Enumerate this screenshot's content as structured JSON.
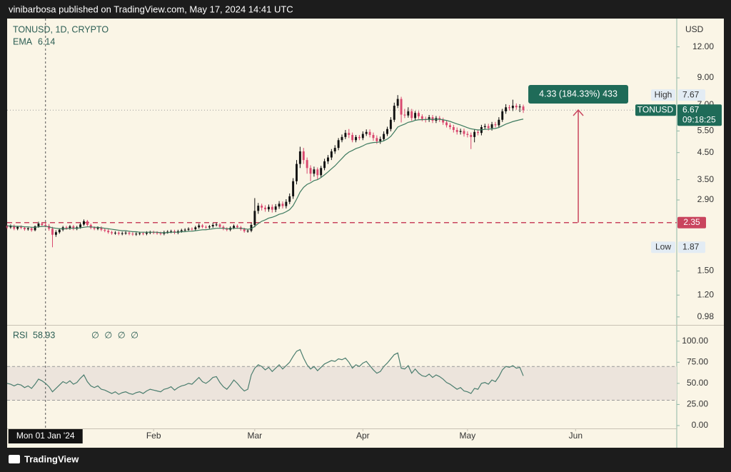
{
  "header": {
    "publisher": "vinibarbosa published on TradingView.com, May 17, 2024 14:41 UTC"
  },
  "footer": {
    "brand": "TradingView"
  },
  "chart_data": [
    {
      "type": "candlestick",
      "title": "TONUSD, 1D, CRYPTO",
      "ema_name": "EMA",
      "axis_unit": "USD",
      "symbol": "TONUSD",
      "countdown": "09:18:25",
      "high_label": "High",
      "low_label": "Low",
      "log_scale": true,
      "up_color": "#111111",
      "down_color": "#d9486f",
      "ema_color": "#3d7a5f",
      "line_color": "#c9455e",
      "xlim": [
        "2023-12-21",
        "2024-06-30"
      ],
      "xticks": [
        {
          "value": "2024-02-01",
          "label": "Feb"
        },
        {
          "value": "2024-03-01",
          "label": "Mar"
        },
        {
          "value": "2024-04-01",
          "label": "Apr"
        },
        {
          "value": "2024-05-01",
          "label": "May"
        },
        {
          "value": "2024-06-01",
          "label": "Jun"
        }
      ],
      "crosshair": {
        "x": "2024-01-01",
        "label": "Mon 01 Jan '24"
      },
      "ylim": [
        0.91,
        15.6
      ],
      "yticks": [
        {
          "value": 0.98,
          "label": "0.98"
        },
        {
          "value": 1.2,
          "label": "1.20"
        },
        {
          "value": 1.5,
          "label": "1.50"
        },
        {
          "value": 2.9,
          "label": "2.90"
        },
        {
          "value": 3.5,
          "label": "3.50"
        },
        {
          "value": 4.5,
          "label": "4.50"
        },
        {
          "value": 5.5,
          "label": "5.50"
        },
        {
          "value": 7,
          "label": "7.00"
        },
        {
          "value": 9,
          "label": "9.00"
        },
        {
          "value": 12,
          "label": "12.00"
        }
      ],
      "horizontal_line": 2.35,
      "measure": {
        "label": "4.33 (184.33%) 433",
        "from": 2.35,
        "to": 6.68
      },
      "x": [
        "2023-12-21",
        "2023-12-22",
        "2023-12-23",
        "2023-12-24",
        "2023-12-25",
        "2023-12-26",
        "2023-12-27",
        "2023-12-28",
        "2023-12-29",
        "2023-12-30",
        "2023-12-31",
        "2024-01-01",
        "2024-01-02",
        "2024-01-03",
        "2024-01-04",
        "2024-01-05",
        "2024-01-06",
        "2024-01-07",
        "2024-01-08",
        "2024-01-09",
        "2024-01-10",
        "2024-01-11",
        "2024-01-12",
        "2024-01-13",
        "2024-01-14",
        "2024-01-15",
        "2024-01-16",
        "2024-01-17",
        "2024-01-18",
        "2024-01-19",
        "2024-01-20",
        "2024-01-21",
        "2024-01-22",
        "2024-01-23",
        "2024-01-24",
        "2024-01-25",
        "2024-01-26",
        "2024-01-27",
        "2024-01-28",
        "2024-01-29",
        "2024-01-30",
        "2024-01-31",
        "2024-02-01",
        "2024-02-02",
        "2024-02-03",
        "2024-02-04",
        "2024-02-05",
        "2024-02-06",
        "2024-02-07",
        "2024-02-08",
        "2024-02-09",
        "2024-02-10",
        "2024-02-11",
        "2024-02-12",
        "2024-02-13",
        "2024-02-14",
        "2024-02-15",
        "2024-02-16",
        "2024-02-17",
        "2024-02-18",
        "2024-02-19",
        "2024-02-20",
        "2024-02-21",
        "2024-02-22",
        "2024-02-23",
        "2024-02-24",
        "2024-02-25",
        "2024-02-26",
        "2024-02-27",
        "2024-02-28",
        "2024-02-29",
        "2024-03-01",
        "2024-03-02",
        "2024-03-03",
        "2024-03-04",
        "2024-03-05",
        "2024-03-06",
        "2024-03-07",
        "2024-03-08",
        "2024-03-09",
        "2024-03-10",
        "2024-03-11",
        "2024-03-12",
        "2024-03-13",
        "2024-03-14",
        "2024-03-15",
        "2024-03-16",
        "2024-03-17",
        "2024-03-18",
        "2024-03-19",
        "2024-03-20",
        "2024-03-21",
        "2024-03-22",
        "2024-03-23",
        "2024-03-24",
        "2024-03-25",
        "2024-03-26",
        "2024-03-27",
        "2024-03-28",
        "2024-03-29",
        "2024-03-30",
        "2024-03-31",
        "2024-04-01",
        "2024-04-02",
        "2024-04-03",
        "2024-04-04",
        "2024-04-05",
        "2024-04-06",
        "2024-04-07",
        "2024-04-08",
        "2024-04-09",
        "2024-04-10",
        "2024-04-11",
        "2024-04-12",
        "2024-04-13",
        "2024-04-14",
        "2024-04-15",
        "2024-04-16",
        "2024-04-17",
        "2024-04-18",
        "2024-04-19",
        "2024-04-20",
        "2024-04-21",
        "2024-04-22",
        "2024-04-23",
        "2024-04-24",
        "2024-04-25",
        "2024-04-26",
        "2024-04-27",
        "2024-04-28",
        "2024-04-29",
        "2024-04-30",
        "2024-05-01",
        "2024-05-02",
        "2024-05-03",
        "2024-05-04",
        "2024-05-05",
        "2024-05-06",
        "2024-05-07",
        "2024-05-08",
        "2024-05-09",
        "2024-05-10",
        "2024-05-11",
        "2024-05-12",
        "2024-05-13",
        "2024-05-14",
        "2024-05-15",
        "2024-05-16",
        "2024-05-17"
      ],
      "open": [
        2.27,
        2.25,
        2.28,
        2.22,
        2.26,
        2.24,
        2.21,
        2.23,
        2.19,
        2.27,
        2.33,
        2.3,
        2.28,
        2.22,
        2.1,
        2.15,
        2.2,
        2.25,
        2.23,
        2.27,
        2.22,
        2.25,
        2.31,
        2.38,
        2.3,
        2.24,
        2.22,
        2.24,
        2.2,
        2.18,
        2.15,
        2.13,
        2.14,
        2.12,
        2.13,
        2.14,
        2.12,
        2.11,
        2.12,
        2.13,
        2.12,
        2.14,
        2.15,
        2.14,
        2.13,
        2.12,
        2.15,
        2.16,
        2.17,
        2.14,
        2.17,
        2.19,
        2.2,
        2.22,
        2.21,
        2.25,
        2.29,
        2.26,
        2.25,
        2.27,
        2.3,
        2.31,
        2.26,
        2.22,
        2.2,
        2.24,
        2.28,
        2.25,
        2.21,
        2.17,
        2.18,
        2.3,
        2.62,
        2.75,
        2.7,
        2.66,
        2.72,
        2.65,
        2.73,
        2.8,
        2.74,
        2.85,
        3.0,
        3.45,
        4.05,
        4.55,
        4.2,
        3.9,
        3.7,
        3.85,
        3.65,
        3.9,
        4.15,
        4.3,
        4.55,
        4.7,
        5.05,
        5.2,
        5.4,
        5.3,
        5.05,
        5.2,
        5.15,
        5.35,
        5.45,
        5.3,
        5.15,
        5.0,
        5.1,
        5.35,
        5.6,
        6.1,
        6.95,
        7.4,
        6.4,
        6.35,
        6.6,
        6.2,
        6.5,
        6.3,
        6.15,
        6.1,
        6.25,
        6.05,
        6.2,
        6.1,
        5.95,
        5.8,
        5.7,
        5.55,
        5.45,
        5.5,
        5.35,
        5.3,
        5.2,
        5.45,
        5.4,
        5.7,
        5.75,
        5.65,
        5.85,
        5.8,
        6.1,
        6.6,
        6.85,
        6.8,
        6.95,
        6.85,
        6.9
      ],
      "high": [
        2.3,
        2.31,
        2.31,
        2.28,
        2.29,
        2.27,
        2.25,
        2.26,
        2.29,
        2.37,
        2.36,
        2.34,
        2.32,
        2.26,
        2.19,
        2.23,
        2.28,
        2.28,
        2.3,
        2.3,
        2.28,
        2.35,
        2.42,
        2.41,
        2.33,
        2.27,
        2.27,
        2.27,
        2.23,
        2.21,
        2.18,
        2.17,
        2.17,
        2.16,
        2.17,
        2.17,
        2.15,
        2.15,
        2.16,
        2.16,
        2.17,
        2.18,
        2.18,
        2.17,
        2.16,
        2.18,
        2.19,
        2.2,
        2.2,
        2.2,
        2.22,
        2.23,
        2.25,
        2.25,
        2.28,
        2.33,
        2.32,
        2.29,
        2.3,
        2.34,
        2.35,
        2.34,
        2.29,
        2.25,
        2.27,
        2.31,
        2.31,
        2.28,
        2.24,
        2.21,
        2.34,
        2.95,
        2.82,
        2.8,
        2.76,
        2.78,
        2.78,
        2.79,
        2.87,
        2.86,
        2.92,
        3.08,
        3.55,
        4.2,
        4.75,
        4.7,
        4.3,
        4.0,
        3.95,
        3.92,
        3.98,
        4.25,
        4.4,
        4.65,
        4.82,
        5.15,
        5.32,
        5.55,
        5.6,
        5.42,
        5.3,
        5.3,
        5.48,
        5.58,
        5.58,
        5.42,
        5.28,
        5.22,
        5.48,
        5.72,
        6.25,
        7.15,
        7.67,
        7.55,
        6.75,
        6.85,
        6.75,
        6.62,
        6.62,
        6.42,
        6.28,
        6.38,
        6.38,
        6.32,
        6.32,
        6.22,
        6.08,
        5.92,
        5.82,
        5.68,
        5.62,
        5.62,
        5.48,
        5.42,
        5.58,
        5.58,
        5.82,
        5.88,
        5.88,
        5.98,
        5.98,
        6.25,
        6.75,
        7.05,
        7.0,
        7.35,
        7.1,
        7.05,
        7.02
      ],
      "low": [
        2.22,
        2.22,
        2.19,
        2.19,
        2.21,
        2.18,
        2.18,
        2.16,
        2.17,
        2.24,
        2.26,
        2.25,
        2.18,
        1.87,
        2.06,
        2.12,
        2.17,
        2.2,
        2.2,
        2.19,
        2.19,
        2.22,
        2.28,
        2.27,
        2.21,
        2.19,
        2.19,
        2.17,
        2.15,
        2.12,
        2.1,
        2.1,
        2.09,
        2.09,
        2.1,
        2.09,
        2.08,
        2.08,
        2.09,
        2.09,
        2.09,
        2.11,
        2.11,
        2.1,
        2.09,
        2.09,
        2.12,
        2.13,
        2.11,
        2.11,
        2.14,
        2.16,
        2.17,
        2.18,
        2.18,
        2.22,
        2.23,
        2.22,
        2.22,
        2.24,
        2.27,
        2.23,
        2.19,
        2.17,
        2.17,
        2.21,
        2.22,
        2.18,
        2.14,
        2.14,
        2.15,
        2.25,
        2.55,
        2.63,
        2.6,
        2.6,
        2.58,
        2.59,
        2.67,
        2.68,
        2.68,
        2.79,
        2.93,
        3.35,
        3.9,
        4.05,
        3.7,
        3.45,
        3.6,
        3.5,
        3.58,
        3.82,
        4.05,
        4.2,
        4.45,
        4.6,
        4.95,
        5.1,
        5.15,
        4.95,
        4.95,
        5.05,
        5.05,
        5.25,
        5.18,
        5.02,
        4.88,
        4.88,
        5.0,
        5.25,
        5.48,
        5.98,
        6.8,
        5.95,
        6.2,
        6.22,
        6.05,
        6.08,
        6.15,
        6.02,
        5.95,
        5.98,
        5.92,
        5.92,
        5.98,
        5.82,
        5.68,
        5.58,
        5.42,
        5.32,
        5.32,
        5.22,
        5.18,
        4.65,
        4.95,
        5.28,
        5.28,
        5.58,
        5.52,
        5.52,
        5.68,
        5.68,
        5.98,
        6.45,
        6.65,
        6.62,
        6.7,
        6.55,
        6.5
      ],
      "close": [
        2.25,
        2.28,
        2.22,
        2.26,
        2.24,
        2.21,
        2.23,
        2.19,
        2.27,
        2.33,
        2.3,
        2.28,
        2.22,
        2.1,
        2.15,
        2.2,
        2.25,
        2.23,
        2.27,
        2.22,
        2.25,
        2.31,
        2.38,
        2.3,
        2.24,
        2.22,
        2.24,
        2.2,
        2.18,
        2.15,
        2.13,
        2.14,
        2.12,
        2.13,
        2.14,
        2.12,
        2.11,
        2.12,
        2.13,
        2.12,
        2.14,
        2.15,
        2.14,
        2.13,
        2.12,
        2.15,
        2.16,
        2.17,
        2.14,
        2.17,
        2.19,
        2.2,
        2.22,
        2.21,
        2.25,
        2.29,
        2.26,
        2.25,
        2.27,
        2.3,
        2.31,
        2.26,
        2.22,
        2.2,
        2.24,
        2.28,
        2.25,
        2.21,
        2.17,
        2.18,
        2.3,
        2.62,
        2.75,
        2.7,
        2.66,
        2.72,
        2.65,
        2.73,
        2.8,
        2.74,
        2.85,
        3.0,
        3.45,
        4.05,
        4.55,
        4.2,
        3.9,
        3.7,
        3.85,
        3.65,
        3.9,
        4.15,
        4.3,
        4.55,
        4.7,
        5.05,
        5.2,
        5.4,
        5.3,
        5.05,
        5.2,
        5.15,
        5.35,
        5.45,
        5.3,
        5.15,
        5.0,
        5.1,
        5.35,
        5.6,
        6.1,
        6.95,
        7.4,
        6.4,
        6.35,
        6.6,
        6.2,
        6.5,
        6.3,
        6.15,
        6.1,
        6.25,
        6.05,
        6.2,
        6.1,
        5.95,
        5.8,
        5.7,
        5.55,
        5.45,
        5.5,
        5.35,
        5.3,
        5.2,
        5.45,
        5.4,
        5.7,
        5.75,
        5.65,
        5.85,
        5.8,
        6.1,
        6.6,
        6.85,
        6.8,
        6.95,
        6.85,
        6.9,
        6.67
      ],
      "ema": [
        2.28,
        2.28,
        2.27,
        2.27,
        2.27,
        2.26,
        2.26,
        2.25,
        2.25,
        2.26,
        2.27,
        2.27,
        2.26,
        2.24,
        2.23,
        2.22,
        2.22,
        2.22,
        2.23,
        2.23,
        2.23,
        2.24,
        2.25,
        2.26,
        2.26,
        2.25,
        2.25,
        2.24,
        2.23,
        2.22,
        2.21,
        2.2,
        2.19,
        2.18,
        2.18,
        2.17,
        2.16,
        2.16,
        2.15,
        2.15,
        2.15,
        2.15,
        2.15,
        2.15,
        2.14,
        2.14,
        2.14,
        2.15,
        2.15,
        2.15,
        2.16,
        2.16,
        2.17,
        2.17,
        2.18,
        2.19,
        2.2,
        2.2,
        2.21,
        2.22,
        2.23,
        2.23,
        2.23,
        2.22,
        2.22,
        2.23,
        2.23,
        2.23,
        2.22,
        2.21,
        2.22,
        2.27,
        2.33,
        2.38,
        2.41,
        2.45,
        2.47,
        2.5,
        2.54,
        2.56,
        2.6,
        2.65,
        2.75,
        2.92,
        3.12,
        3.26,
        3.35,
        3.4,
        3.47,
        3.5,
        3.57,
        3.66,
        3.76,
        3.87,
        3.98,
        4.12,
        4.26,
        4.41,
        4.52,
        4.59,
        4.67,
        4.72,
        4.79,
        4.87,
        4.91,
        4.94,
        4.95,
        4.97,
        5.02,
        5.1,
        5.23,
        5.45,
        5.7,
        5.79,
        5.86,
        5.96,
        6.0,
        6.07,
        6.1,
        6.11,
        6.11,
        6.13,
        6.12,
        6.13,
        6.13,
        6.1,
        6.06,
        6.01,
        5.94,
        5.87,
        5.81,
        5.74,
        5.67,
        5.61,
        5.58,
        5.55,
        5.56,
        5.58,
        5.59,
        5.61,
        5.63,
        5.68,
        5.77,
        5.86,
        5.93,
        6.0,
        6.05,
        6.1,
        6.14
      ]
    },
    {
      "type": "line",
      "title": "RSI",
      "placeholders": "∅ ∅ ∅ ∅",
      "color": "#4a7d6e",
      "band": [
        30,
        70
      ],
      "band_color": "#ece4dc",
      "ylim": [
        -3.4,
        115
      ],
      "yticks": [
        {
          "value": 0,
          "label": "0.00"
        },
        {
          "value": 25,
          "label": "25.00"
        },
        {
          "value": 50,
          "label": "50.00"
        },
        {
          "value": 75,
          "label": "75.00"
        },
        {
          "value": 100,
          "label": "100.00"
        }
      ],
      "values": [
        50,
        49,
        47,
        49,
        48,
        45,
        47,
        44,
        49,
        55,
        53,
        50,
        46,
        40,
        44,
        48,
        52,
        50,
        53,
        49,
        51,
        56,
        60,
        52,
        47,
        45,
        47,
        43,
        42,
        40,
        38,
        40,
        37,
        39,
        40,
        38,
        37,
        39,
        40,
        38,
        41,
        43,
        42,
        41,
        40,
        43,
        44,
        46,
        42,
        45,
        47,
        48,
        50,
        49,
        53,
        57,
        52,
        50,
        53,
        57,
        58,
        51,
        46,
        43,
        48,
        54,
        50,
        45,
        41,
        43,
        60,
        68,
        72,
        70,
        66,
        69,
        64,
        68,
        72,
        67,
        71,
        75,
        82,
        88,
        90,
        80,
        72,
        67,
        70,
        65,
        69,
        73,
        75,
        77,
        76,
        79,
        78,
        80,
        75,
        68,
        72,
        70,
        74,
        76,
        71,
        66,
        62,
        64,
        70,
        74,
        79,
        84,
        86,
        68,
        67,
        71,
        62,
        67,
        62,
        59,
        58,
        61,
        57,
        60,
        58,
        55,
        51,
        49,
        46,
        43,
        45,
        41,
        40,
        38,
        44,
        43,
        50,
        51,
        49,
        54,
        52,
        58,
        66,
        70,
        69,
        71,
        68,
        69,
        58.93
      ]
    }
  ]
}
